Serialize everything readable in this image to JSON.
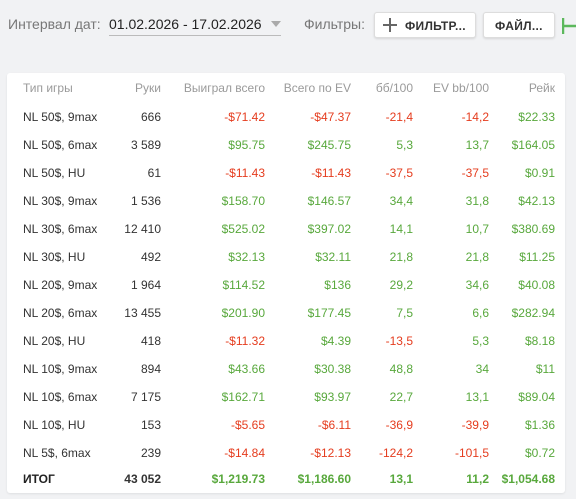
{
  "toolbar": {
    "date_label": "Интервал дат:",
    "date_range": "01.02.2026 - 17.02.2026",
    "filters_label": "Фильтры:",
    "filter_button": "ФИЛЬТР...",
    "file_button": "ФАЙЛ..."
  },
  "colors": {
    "negative": "#e53c1e",
    "positive": "#58a83c"
  },
  "table": {
    "headers": [
      "Тип игры",
      "Руки",
      "Выиграл всего",
      "Всего по EV",
      "бб/100",
      "EV bb/100",
      "Рейк"
    ],
    "rows": [
      [
        "NL 50$, 9max",
        "666",
        "-$71.42",
        "-$47.37",
        "-21,4",
        "-14,2",
        "$22.33"
      ],
      [
        "NL 50$, 6max",
        "3 589",
        "$95.75",
        "$245.75",
        "5,3",
        "13,7",
        "$164.05"
      ],
      [
        "NL 50$, HU",
        "61",
        "-$11.43",
        "-$11.43",
        "-37,5",
        "-37,5",
        "$0.91"
      ],
      [
        "NL 30$, 9max",
        "1 536",
        "$158.70",
        "$146.57",
        "34,4",
        "31,8",
        "$42.13"
      ],
      [
        "NL 30$, 6max",
        "12 410",
        "$525.02",
        "$397.02",
        "14,1",
        "10,7",
        "$380.69"
      ],
      [
        "NL 30$, HU",
        "492",
        "$32.13",
        "$32.11",
        "21,8",
        "21,8",
        "$11.25"
      ],
      [
        "NL 20$, 9max",
        "1 964",
        "$114.52",
        "$136",
        "29,2",
        "34,6",
        "$40.08"
      ],
      [
        "NL 20$, 6max",
        "13 455",
        "$201.90",
        "$177.45",
        "7,5",
        "6,6",
        "$282.94"
      ],
      [
        "NL 20$, HU",
        "418",
        "-$11.32",
        "$4.39",
        "-13,5",
        "5,3",
        "$8.18"
      ],
      [
        "NL 10$, 9max",
        "894",
        "$43.66",
        "$30.38",
        "48,8",
        "34",
        "$11"
      ],
      [
        "NL 10$, 6max",
        "7 175",
        "$162.71",
        "$93.97",
        "22,7",
        "13,1",
        "$89.04"
      ],
      [
        "NL 10$, HU",
        "153",
        "-$5.65",
        "-$6.11",
        "-36,9",
        "-39,9",
        "$1.36"
      ],
      [
        "NL 5$, 6max",
        "239",
        "-$14.84",
        "-$12.13",
        "-124,2",
        "-101,5",
        "$0.72"
      ]
    ],
    "total": [
      "ИТОГ",
      "43 052",
      "$1,219.73",
      "$1,186.60",
      "13,1",
      "11,2",
      "$1,054.68"
    ]
  }
}
